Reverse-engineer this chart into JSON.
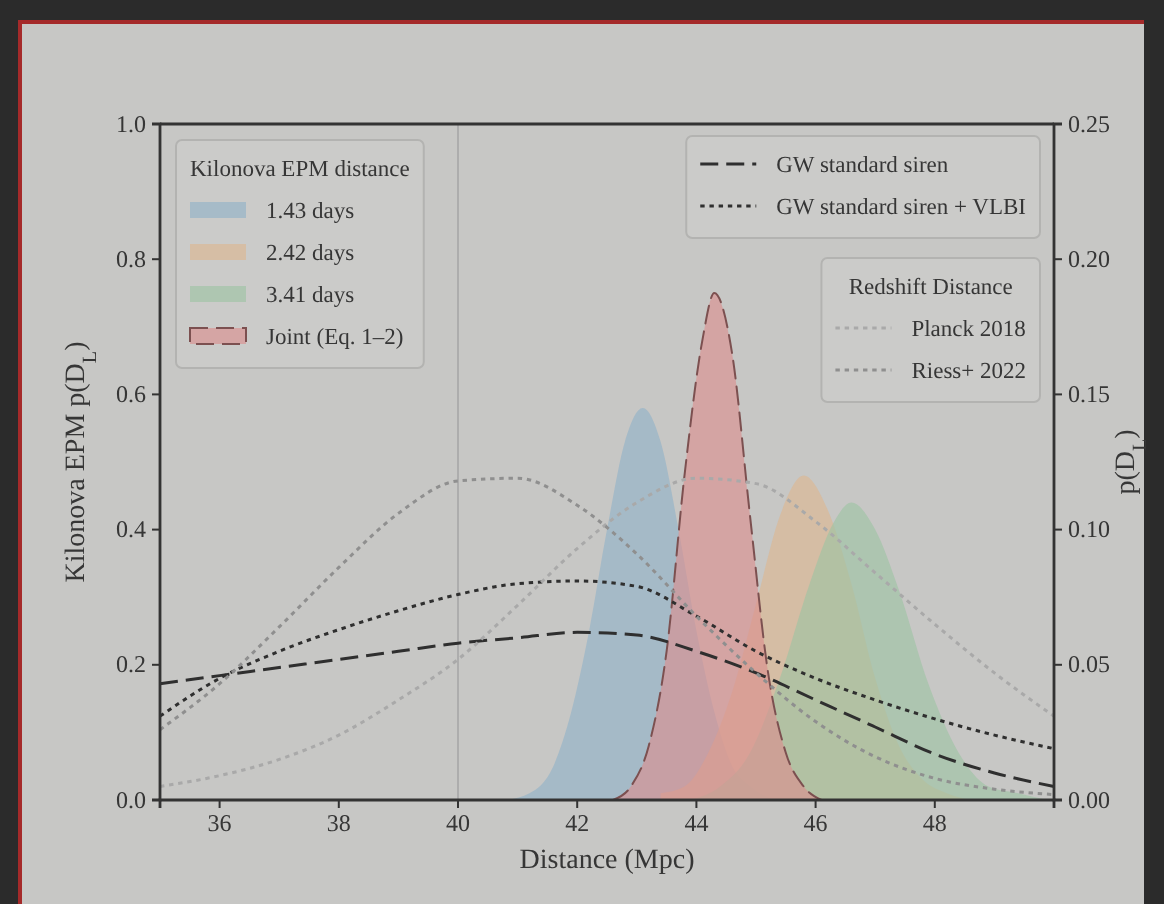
{
  "chart_data": {
    "type": "area",
    "xlabel": "Distance (Mpc)",
    "ylabel": "Kilonova EPM p(D$_{L}$)",
    "y2label": "p(D$_{L}$)",
    "legend_title": "Kilonova EPM distance",
    "annotations": [
      "Redshift Distance"
    ],
    "legend": "top left",
    "xlim": [
      35,
      50
    ],
    "xticks": [
      36,
      38,
      40,
      42,
      44,
      46,
      48
    ],
    "ylim": [
      0,
      1
    ],
    "yticks": [
      {
        "value": 0,
        "label": "0.0"
      },
      {
        "value": 0.2,
        "label": "0.2"
      },
      {
        "value": 0.4,
        "label": "0.4"
      },
      {
        "value": 0.6,
        "label": "0.6"
      },
      {
        "value": 0.8,
        "label": "0.8"
      },
      {
        "value": 1,
        "label": "1.0"
      }
    ],
    "y2lim": [
      0,
      0.25
    ],
    "y2ticks": [
      {
        "value": 0,
        "label": "0.00"
      },
      {
        "value": 0.05,
        "label": "0.05"
      },
      {
        "value": 0.1,
        "label": "0.10"
      },
      {
        "value": 0.15,
        "label": "0.15"
      },
      {
        "value": 0.2,
        "label": "0.20"
      },
      {
        "value": 0.25,
        "label": "0.25"
      }
    ],
    "ref_lines": [
      {
        "axis": "x",
        "value": 40,
        "color": "#adadad"
      }
    ],
    "x": [
      35,
      36,
      37,
      38,
      39,
      40,
      41,
      42,
      43,
      44,
      45,
      46,
      47,
      48,
      49,
      50
    ],
    "series": [
      {
        "name": "1.43 days",
        "color": "#8fb1c8",
        "x": [
          40.8,
          41.2,
          41.6,
          41.9,
          42.2,
          42.5,
          42.8,
          43.1,
          43.4,
          43.7,
          44.0,
          44.3,
          44.6,
          44.9,
          45.3
        ],
        "values": [
          0,
          0.01,
          0.05,
          0.13,
          0.25,
          0.4,
          0.53,
          0.58,
          0.53,
          0.4,
          0.25,
          0.13,
          0.05,
          0.02,
          0
        ]
      },
      {
        "name": "2.42 days",
        "color": "#ddb68f",
        "x": [
          43.4,
          43.8,
          44.2,
          44.6,
          45.0,
          45.4,
          45.8,
          46.2,
          46.6,
          47.0,
          47.4,
          47.8,
          48.2,
          48.6
        ],
        "values": [
          0.01,
          0.02,
          0.07,
          0.16,
          0.29,
          0.42,
          0.48,
          0.43,
          0.32,
          0.18,
          0.08,
          0.03,
          0.01,
          0
        ]
      },
      {
        "name": "3.41 days",
        "color": "#9dc3a3",
        "x": [
          43.9,
          44.4,
          44.9,
          45.4,
          45.9,
          46.3,
          46.6,
          47.0,
          47.4,
          47.9,
          48.4,
          48.9,
          49.4,
          49.9
        ],
        "values": [
          0,
          0.02,
          0.07,
          0.18,
          0.32,
          0.41,
          0.44,
          0.4,
          0.31,
          0.17,
          0.07,
          0.02,
          0.01,
          0
        ]
      },
      {
        "name": "Joint (Eq. 1–2)",
        "color": "#dc8e8e",
        "line_style": "dashed",
        "x": [
          42.6,
          42.9,
          43.2,
          43.5,
          43.8,
          44.1,
          44.3,
          44.6,
          44.9,
          45.2,
          45.5,
          45.8,
          46.1
        ],
        "values": [
          0,
          0.02,
          0.08,
          0.22,
          0.48,
          0.68,
          0.75,
          0.66,
          0.42,
          0.19,
          0.07,
          0.02,
          0
        ]
      },
      {
        "name": "GW standard siren",
        "type": "line",
        "axis": "y2",
        "color": "#2f2f2f",
        "line_style": "dashed",
        "values": [
          0.043,
          0.046,
          0.049,
          0.052,
          0.055,
          0.058,
          0.06,
          0.062,
          0.061,
          0.055,
          0.047,
          0.037,
          0.027,
          0.017,
          0.01,
          0.005
        ]
      },
      {
        "name": "GW standard siren + VLBI",
        "type": "line",
        "axis": "y2",
        "color": "#2f2f2f",
        "line_style": "dotted",
        "values": [
          0.031,
          0.045,
          0.055,
          0.063,
          0.07,
          0.076,
          0.08,
          0.081,
          0.079,
          0.068,
          0.055,
          0.045,
          0.037,
          0.03,
          0.024,
          0.019
        ]
      },
      {
        "name": "Planck 2018",
        "type": "line",
        "axis": "y2",
        "color": "#a9a9a9",
        "line_style": "dotted",
        "values": [
          0.005,
          0.009,
          0.015,
          0.024,
          0.037,
          0.052,
          0.072,
          0.093,
          0.11,
          0.119,
          0.117,
          0.103,
          0.084,
          0.065,
          0.047,
          0.031
        ]
      },
      {
        "name": "Riess+ 2022",
        "type": "line",
        "axis": "y2",
        "color": "#8f8f8f",
        "line_style": "dotted",
        "values": [
          0.026,
          0.043,
          0.064,
          0.086,
          0.106,
          0.118,
          0.119,
          0.109,
          0.091,
          0.068,
          0.047,
          0.029,
          0.016,
          0.008,
          0.004,
          0.002
        ]
      }
    ]
  }
}
